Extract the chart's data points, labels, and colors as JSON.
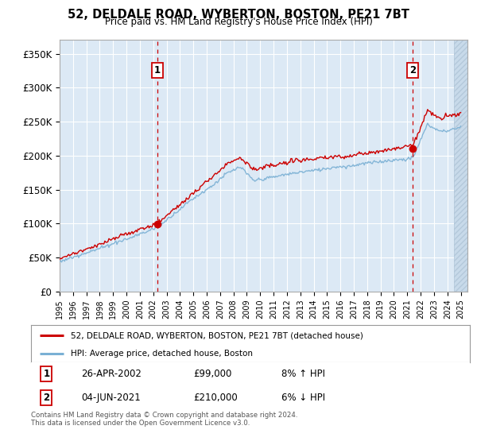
{
  "title": "52, DELDALE ROAD, WYBERTON, BOSTON, PE21 7BT",
  "subtitle": "Price paid vs. HM Land Registry's House Price Index (HPI)",
  "ylabel_ticks": [
    "£0",
    "£50K",
    "£100K",
    "£150K",
    "£200K",
    "£250K",
    "£300K",
    "£350K"
  ],
  "ytick_values": [
    0,
    50000,
    100000,
    150000,
    200000,
    250000,
    300000,
    350000
  ],
  "ylim": [
    0,
    370000
  ],
  "xlim_start": 1995.0,
  "xlim_end": 2025.5,
  "background_color": "#dce9f5",
  "grid_color": "#ffffff",
  "red_line_color": "#cc0000",
  "blue_line_color": "#7ab0d4",
  "transaction1_date": 2002.32,
  "transaction1_price": 99000,
  "transaction2_date": 2021.42,
  "transaction2_price": 210000,
  "legend_label1": "52, DELDALE ROAD, WYBERTON, BOSTON, PE21 7BT (detached house)",
  "legend_label2": "HPI: Average price, detached house, Boston",
  "annotation1_label": "1",
  "annotation1_date_str": "26-APR-2002",
  "annotation1_price_str": "£99,000",
  "annotation1_hpi_str": "8% ↑ HPI",
  "annotation2_label": "2",
  "annotation2_date_str": "04-JUN-2021",
  "annotation2_price_str": "£210,000",
  "annotation2_hpi_str": "6% ↓ HPI",
  "footer": "Contains HM Land Registry data © Crown copyright and database right 2024.\nThis data is licensed under the Open Government Licence v3.0."
}
